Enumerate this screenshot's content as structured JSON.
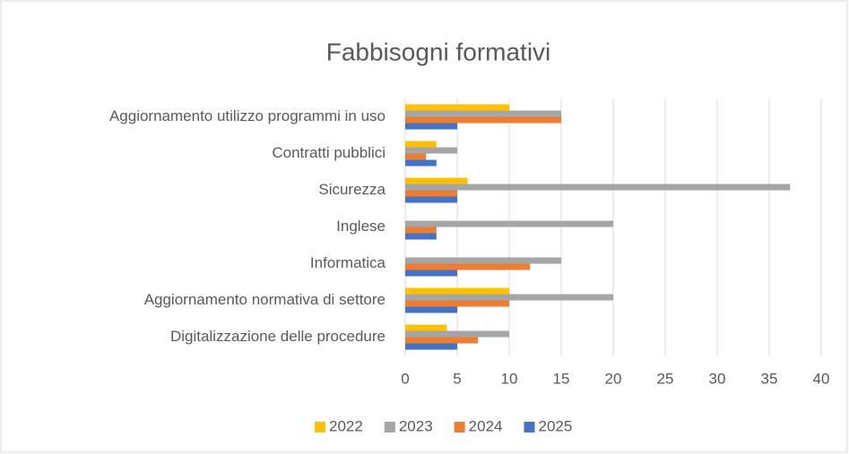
{
  "chart_data": {
    "type": "bar",
    "orientation": "horizontal",
    "title": "Fabbisogni formativi",
    "categories": [
      "Aggiornamento utilizzo programmi in uso",
      "Contratti pubblici",
      "Sicurezza",
      "Inglese",
      "Informatica",
      "Aggiornamento normativa di settore",
      "Digitalizzazione delle procedure"
    ],
    "series": [
      {
        "name": "2022",
        "color": "#ffc000",
        "values": [
          10,
          3,
          6,
          0,
          0,
          10,
          4
        ]
      },
      {
        "name": "2023",
        "color": "#a5a5a5",
        "values": [
          15,
          5,
          37,
          20,
          15,
          20,
          10
        ]
      },
      {
        "name": "2024",
        "color": "#ed7d31",
        "values": [
          15,
          2,
          5,
          3,
          12,
          10,
          7
        ]
      },
      {
        "name": "2025",
        "color": "#4472c4",
        "values": [
          5,
          3,
          5,
          3,
          5,
          5,
          5
        ]
      }
    ],
    "xlim": [
      0,
      40
    ],
    "xticks": [
      0,
      5,
      10,
      15,
      20,
      25,
      30,
      35,
      40
    ],
    "grid": true,
    "legend": "bottom"
  }
}
